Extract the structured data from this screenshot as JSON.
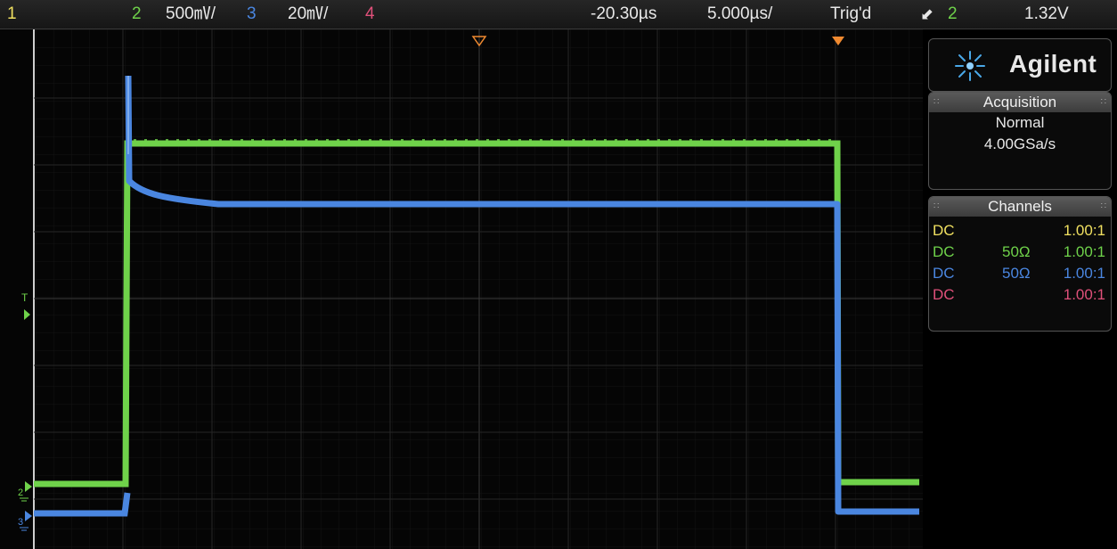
{
  "status_bar": {
    "ch1_label": "1",
    "ch2_label": "2",
    "ch2_scale": "500㎷/",
    "ch3_label": "3",
    "ch3_scale": "20㎷/",
    "ch4_label": "4",
    "time_offset": "-20.30µs",
    "time_scale": "5.000µs/",
    "trigger_status": "Trig'd",
    "trigger_edge": "⬋",
    "trigger_source": "2",
    "trigger_level": "1.32V"
  },
  "brand": {
    "name": "Agilent",
    "logo": "spark-icon"
  },
  "acquisition": {
    "title": "Acquisition",
    "mode": "Normal",
    "sample_rate": "4.00GSa/s"
  },
  "channels": {
    "title": "Channels",
    "rows": [
      {
        "coupling": "DC",
        "impedance": "",
        "probe": "1.00:1",
        "color": "#f0e060"
      },
      {
        "coupling": "DC",
        "impedance": "50Ω",
        "probe": "1.00:1",
        "color": "#6fd24a"
      },
      {
        "coupling": "DC",
        "impedance": "50Ω",
        "probe": "1.00:1",
        "color": "#4a86e0"
      },
      {
        "coupling": "DC",
        "impedance": "",
        "probe": "1.00:1",
        "color": "#e0507a"
      }
    ]
  },
  "markers": {
    "trigger_level_label": "T",
    "ch2_ground_label": "2",
    "ch3_ground_label": "3"
  },
  "colors": {
    "ch1": "#f0e060",
    "ch2": "#6fd24a",
    "ch3": "#4a86e0",
    "ch4": "#e0507a",
    "trigger_marker": "#f08a30"
  }
}
